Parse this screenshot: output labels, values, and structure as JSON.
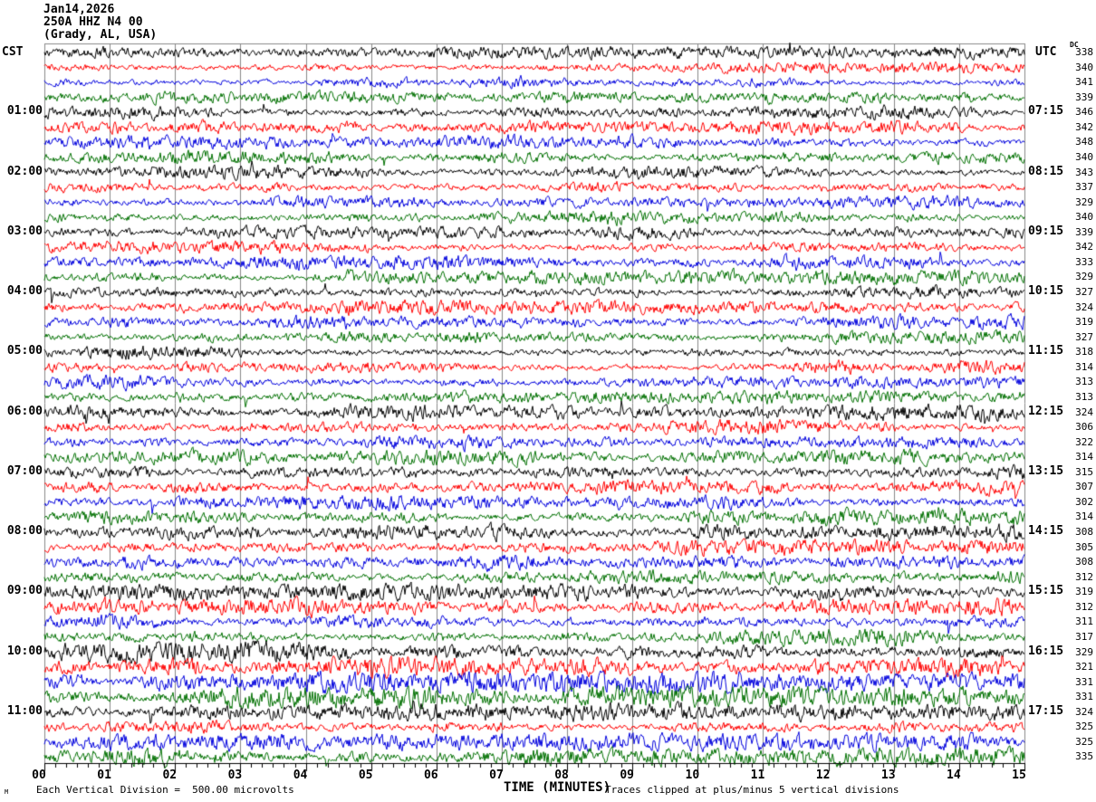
{
  "chart_data": {
    "type": "line",
    "subtype": "helicorder seismogram, 15-minute sweeps, 4 traces per hour",
    "title_lines": [
      "Jan14,2026",
      "250A HHZ N4 00",
      "(Grady, AL, USA)"
    ],
    "xlabel": "TIME (MINUTES)",
    "x_ticks": [
      "00",
      "01",
      "02",
      "03",
      "04",
      "05",
      "06",
      "07",
      "08",
      "09",
      "10",
      "11",
      "12",
      "13",
      "14",
      "15"
    ],
    "x_range_minutes": [
      0,
      15
    ],
    "minor_ticks_per_minute": 6,
    "row_count": 48,
    "row_color_cycle": [
      "#000000",
      "#ff0000",
      "#0000dd",
      "#007000"
    ],
    "grid_color": "#888888",
    "left_axis": {
      "label": "CST",
      "times": [
        "01:00",
        "02:00",
        "03:00",
        "04:00",
        "05:00",
        "06:00",
        "07:00",
        "08:00",
        "09:00",
        "10:00",
        "11:00"
      ]
    },
    "right_axis": {
      "label": "UTC",
      "times": [
        "07:15",
        "08:15",
        "09:15",
        "10:15",
        "11:15",
        "12:15",
        "13:15",
        "14:15",
        "15:15",
        "16:15",
        "17:15"
      ]
    },
    "dc_label": "DC",
    "dc_offsets": [
      338,
      340,
      341,
      339,
      346,
      342,
      348,
      340,
      343,
      337,
      329,
      340,
      339,
      342,
      333,
      329,
      327,
      324,
      319,
      327,
      318,
      314,
      313,
      313,
      324,
      306,
      322,
      314,
      315,
      307,
      302,
      314,
      308,
      305,
      308,
      312,
      319,
      312,
      311,
      317,
      329,
      321,
      331,
      331,
      324,
      325,
      325,
      335
    ],
    "footer": {
      "scale_note": "Each Vertical Division =  500.00 microvolts",
      "clip_note": "Traces clipped at plus/minus 5 vertical divisions",
      "corner_mark": "M"
    }
  }
}
